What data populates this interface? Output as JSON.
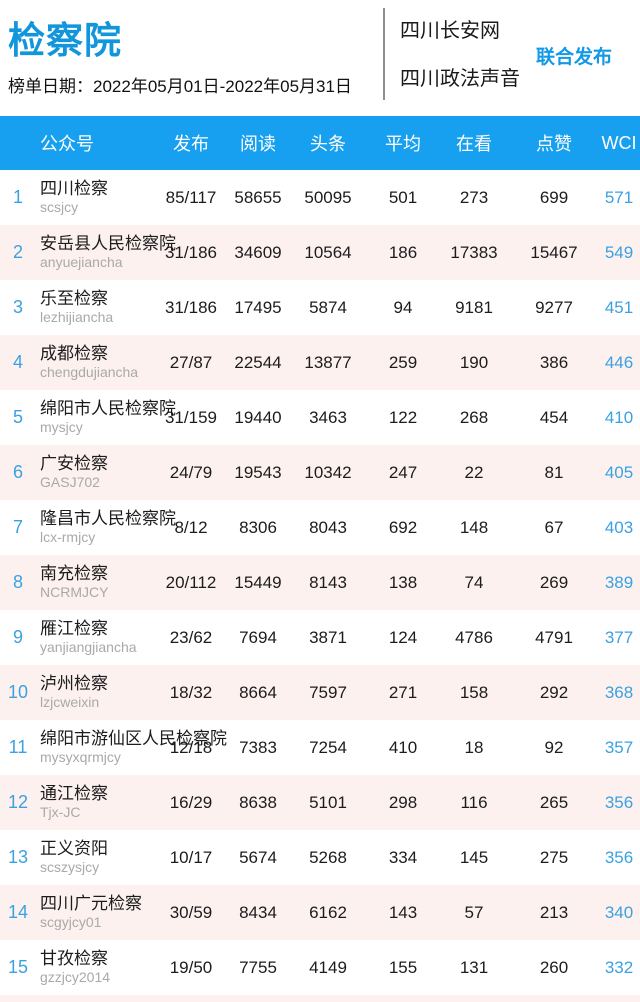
{
  "header": {
    "title": "检察院",
    "date_label": "榜单日期：2022年05月01日-2022年05月31日",
    "publisher_1": "四川长安网",
    "publisher_2": "四川政法声音",
    "badge": "联合发布"
  },
  "table": {
    "columns": [
      "公众号",
      "发布",
      "阅读",
      "头条",
      "平均",
      "在看",
      "点赞",
      "WCI"
    ],
    "rows": [
      {
        "rank": "1",
        "name": "四川检察",
        "account_id": "scsjcy",
        "publish": "85/117",
        "read": "58655",
        "top": "50095",
        "avg": "501",
        "watch": "273",
        "like": "699",
        "wci": "571"
      },
      {
        "rank": "2",
        "name": "安岳县人民检察院",
        "account_id": "anyuejiancha",
        "publish": "31/186",
        "read": "34609",
        "top": "10564",
        "avg": "186",
        "watch": "17383",
        "like": "15467",
        "wci": "549"
      },
      {
        "rank": "3",
        "name": "乐至检察",
        "account_id": "lezhijiancha",
        "publish": "31/186",
        "read": "17495",
        "top": "5874",
        "avg": "94",
        "watch": "9181",
        "like": "9277",
        "wci": "451"
      },
      {
        "rank": "4",
        "name": "成都检察",
        "account_id": "chengdujiancha",
        "publish": "27/87",
        "read": "22544",
        "top": "13877",
        "avg": "259",
        "watch": "190",
        "like": "386",
        "wci": "446"
      },
      {
        "rank": "5",
        "name": "绵阳市人民检察院",
        "account_id": "mysjcy",
        "publish": "31/159",
        "read": "19440",
        "top": "3463",
        "avg": "122",
        "watch": "268",
        "like": "454",
        "wci": "410"
      },
      {
        "rank": "6",
        "name": "广安检察",
        "account_id": "GASJ702",
        "publish": "24/79",
        "read": "19543",
        "top": "10342",
        "avg": "247",
        "watch": "22",
        "like": "81",
        "wci": "405"
      },
      {
        "rank": "7",
        "name": "隆昌市人民检察院",
        "account_id": "lcx-rmjcy",
        "publish": "8/12",
        "read": "8306",
        "top": "8043",
        "avg": "692",
        "watch": "148",
        "like": "67",
        "wci": "403"
      },
      {
        "rank": "8",
        "name": "南充检察",
        "account_id": "NCRMJCY",
        "publish": "20/112",
        "read": "15449",
        "top": "8143",
        "avg": "138",
        "watch": "74",
        "like": "269",
        "wci": "389"
      },
      {
        "rank": "9",
        "name": "雁江检察",
        "account_id": "yanjiangjiancha",
        "publish": "23/62",
        "read": "7694",
        "top": "3871",
        "avg": "124",
        "watch": "4786",
        "like": "4791",
        "wci": "377"
      },
      {
        "rank": "10",
        "name": "泸州检察",
        "account_id": "lzjcweixin",
        "publish": "18/32",
        "read": "8664",
        "top": "7597",
        "avg": "271",
        "watch": "158",
        "like": "292",
        "wci": "368"
      },
      {
        "rank": "11",
        "name": "绵阳市游仙区人民检察院",
        "account_id": "mysyxqrmjcy",
        "publish": "12/18",
        "read": "7383",
        "top": "7254",
        "avg": "410",
        "watch": "18",
        "like": "92",
        "wci": "357"
      },
      {
        "rank": "12",
        "name": "通江检察",
        "account_id": "Tjx-JC",
        "publish": "16/29",
        "read": "8638",
        "top": "5101",
        "avg": "298",
        "watch": "116",
        "like": "265",
        "wci": "356"
      },
      {
        "rank": "13",
        "name": "正义资阳",
        "account_id": "scszysjcy",
        "publish": "10/17",
        "read": "5674",
        "top": "5268",
        "avg": "334",
        "watch": "145",
        "like": "275",
        "wci": "356"
      },
      {
        "rank": "14",
        "name": "四川广元检察",
        "account_id": "scgyjcy01",
        "publish": "30/59",
        "read": "8434",
        "top": "6162",
        "avg": "143",
        "watch": "57",
        "like": "213",
        "wci": "340"
      },
      {
        "rank": "15",
        "name": "甘孜检察",
        "account_id": "gzzjcy2014",
        "publish": "19/50",
        "read": "7755",
        "top": "4149",
        "avg": "155",
        "watch": "131",
        "like": "260",
        "wci": "332"
      }
    ]
  },
  "colors": {
    "accent_blue": "#1296db",
    "bar_blue": "#18a0f0",
    "rank_blue": "#3aa1e2",
    "alt_row_pink": "#fdf1f0"
  }
}
